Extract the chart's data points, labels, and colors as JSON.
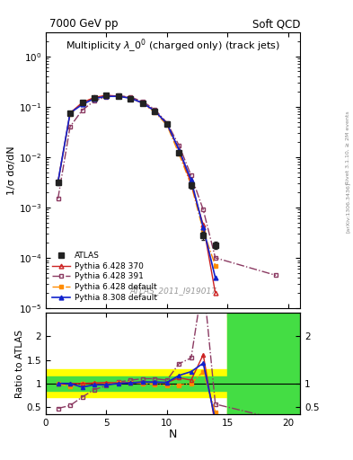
{
  "title_left": "7000 GeV pp",
  "title_right": "Soft QCD",
  "main_title": "Multiplicity $\\lambda\\_0^0$ (charged only) (track jets)",
  "watermark": "ATLAS_2011_I919017",
  "right_label": "Rivet 3.1.10, ≥ 2M events",
  "arxiv_label": "[arXiv:1306.3436]",
  "xlabel": "N",
  "ylabel_main": "1/σ dσ/dN",
  "ylabel_ratio": "Ratio to ATLAS",
  "x_data": [
    1,
    2,
    3,
    4,
    5,
    6,
    7,
    8,
    9,
    10,
    11,
    12,
    13,
    14
  ],
  "x_data_extra": [
    19
  ],
  "atlas_y": [
    0.0032,
    0.075,
    0.12,
    0.15,
    0.165,
    0.16,
    0.145,
    0.115,
    0.08,
    0.045,
    0.012,
    0.0028,
    0.00028,
    0.00018
  ],
  "atlas_yerr": [
    0.0004,
    0.004,
    0.005,
    0.006,
    0.006,
    0.006,
    0.005,
    0.004,
    0.003,
    0.002,
    0.0008,
    0.0004,
    5e-05,
    3e-05
  ],
  "py6_370_y": [
    0.0032,
    0.075,
    0.12,
    0.152,
    0.168,
    0.162,
    0.148,
    0.118,
    0.082,
    0.046,
    0.0135,
    0.003,
    0.00045,
    2e-05
  ],
  "py6_391_y": [
    0.0015,
    0.04,
    0.085,
    0.13,
    0.157,
    0.165,
    0.155,
    0.126,
    0.088,
    0.048,
    0.017,
    0.0043,
    0.0009,
    0.0001
  ],
  "py6_391_y_extra": [
    4.5e-05
  ],
  "py6_def_y": [
    0.0032,
    0.07,
    0.12,
    0.15,
    0.165,
    0.162,
    0.147,
    0.115,
    0.078,
    0.043,
    0.0115,
    0.0028,
    0.00035,
    7e-05
  ],
  "py8_def_y": [
    0.0032,
    0.075,
    0.11,
    0.145,
    0.16,
    0.16,
    0.147,
    0.118,
    0.082,
    0.046,
    0.014,
    0.0035,
    0.0004,
    4e-05
  ],
  "ratio_py6_370": [
    1.0,
    1.0,
    1.0,
    1.01,
    1.02,
    1.01,
    1.02,
    1.03,
    1.02,
    1.02,
    1.12,
    1.07,
    1.61,
    0.11
  ],
  "ratio_py6_391": [
    0.47,
    0.53,
    0.71,
    0.87,
    0.95,
    1.03,
    1.07,
    1.1,
    1.1,
    1.07,
    1.42,
    1.54,
    3.2,
    0.56
  ],
  "ratio_py6_391_extra": [
    0.25
  ],
  "ratio_py6_def": [
    1.0,
    0.93,
    1.0,
    1.0,
    1.0,
    1.01,
    1.01,
    1.0,
    0.98,
    0.96,
    0.96,
    1.0,
    1.25,
    0.39
  ],
  "ratio_py8_def": [
    1.0,
    1.0,
    0.92,
    0.97,
    0.97,
    1.0,
    1.01,
    1.03,
    1.03,
    1.02,
    1.17,
    1.25,
    1.43,
    0.22
  ],
  "color_atlas": "#222222",
  "color_py6_370": "#cc2222",
  "color_py6_391": "#8b3a62",
  "color_py6_def": "#ff8c00",
  "color_py8_def": "#1122cc",
  "color_yellow": "#ffff00",
  "color_green": "#44dd44",
  "ylim_main": [
    1e-05,
    3.0
  ],
  "ylim_ratio": [
    0.35,
    2.5
  ],
  "xlim": [
    0,
    21
  ],
  "xlim_ratio": [
    0,
    21
  ]
}
